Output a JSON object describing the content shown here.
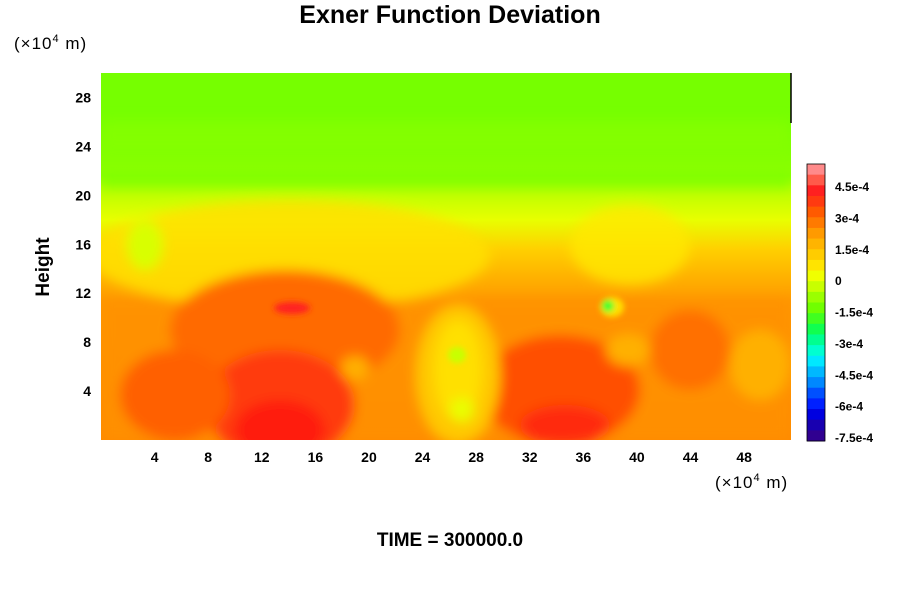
{
  "chart_data": {
    "type": "heatmap",
    "title": "Exner Function Deviation",
    "ylabel": "Height",
    "x_unit": {
      "prefix": "(×10",
      "exp": "4",
      "suffix": " m)"
    },
    "y_unit": {
      "prefix": "(×10",
      "exp": "4",
      "suffix": " m)"
    },
    "xlim": [
      0,
      51.5
    ],
    "ylim": [
      0,
      30
    ],
    "x_ticks": [
      4,
      8,
      12,
      16,
      20,
      24,
      28,
      32,
      36,
      40,
      44,
      48
    ],
    "y_ticks": [
      4,
      8,
      12,
      16,
      20,
      24,
      28
    ],
    "colorbar": {
      "levels": [
        "4.5e-4",
        "3e-4",
        "1.5e-4",
        "0",
        "-1.5e-4",
        "-3e-4",
        "-4.5e-4",
        "-6e-4",
        "-7.5e-4"
      ],
      "colors": [
        "#ff8a8a",
        "#ff5a4a",
        "#ff2020",
        "#ff3a10",
        "#ff5a00",
        "#ff7a00",
        "#ff9a00",
        "#ffb400",
        "#ffcc00",
        "#ffe400",
        "#f0ff00",
        "#c8ff00",
        "#9aff00",
        "#70ff00",
        "#40ff20",
        "#10ff50",
        "#00ff90",
        "#00ffd0",
        "#00e8ff",
        "#00b8ff",
        "#0088ff",
        "#0050ff",
        "#0020ff",
        "#0000e0",
        "#1800b0",
        "#300090"
      ]
    },
    "annotations": {
      "time_label": "TIME = 300000.0"
    }
  }
}
